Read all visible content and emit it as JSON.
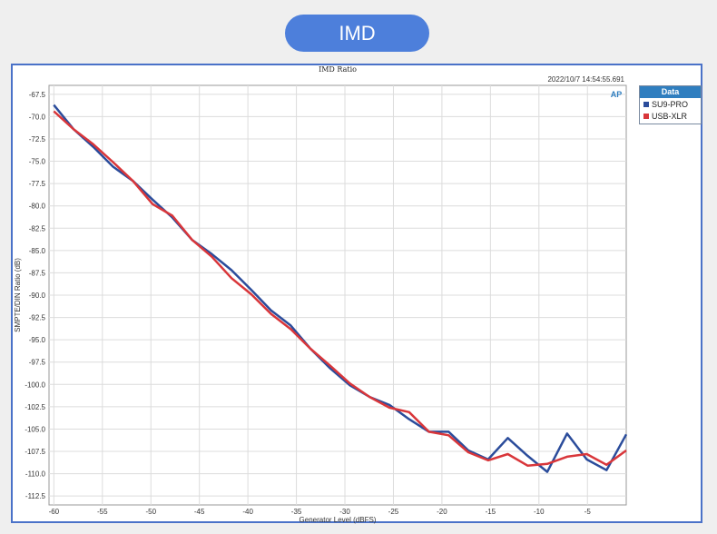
{
  "header": {
    "title": "IMD"
  },
  "chart_data": {
    "type": "line",
    "title": "IMD Ratio",
    "timestamp": "2022/10/7 14:54:55.691",
    "xlabel": "Generator Level (dBFS)",
    "ylabel": "SMPTE/DIN Ratio (dB)",
    "xlim": [
      -60.5,
      -1
    ],
    "ylim": [
      -113.5,
      -66.5
    ],
    "xticks": [
      -60,
      -55,
      -50,
      -45,
      -40,
      -35,
      -30,
      -25,
      -20,
      -15,
      -10,
      -5
    ],
    "yticks": [
      -67.5,
      -70.0,
      -72.5,
      -75.0,
      -77.5,
      -80.0,
      -82.5,
      -85.0,
      -87.5,
      -90.0,
      -92.5,
      -95.0,
      -97.5,
      -100.0,
      -102.5,
      -105.0,
      -107.5,
      -110.0,
      -112.5
    ],
    "grid": true,
    "legend_title": "Data",
    "legend_placement": "right",
    "x": [
      -60,
      -57.97,
      -55.93,
      -53.9,
      -51.86,
      -49.83,
      -47.79,
      -45.76,
      -43.72,
      -41.69,
      -39.66,
      -37.62,
      -35.59,
      -33.55,
      -31.52,
      -29.48,
      -27.45,
      -25.41,
      -23.38,
      -21.34,
      -19.31,
      -17.28,
      -15.24,
      -13.21,
      -11.17,
      -9.14,
      -7.1,
      -5.07,
      -3.03,
      -1
    ],
    "series": [
      {
        "name": "SU9-PRO",
        "color": "#2b4c9b",
        "values": [
          -68.7,
          -71.4,
          -73.4,
          -75.6,
          -77.2,
          -79.3,
          -81.3,
          -83.8,
          -85.4,
          -87.2,
          -89.4,
          -91.7,
          -93.4,
          -96.0,
          -98.2,
          -100.1,
          -101.4,
          -102.3,
          -103.9,
          -105.3,
          -105.3,
          -107.4,
          -108.4,
          -106.0,
          -108.0,
          -109.8,
          -105.5,
          -108.4,
          -109.6,
          -105.6
        ]
      },
      {
        "name": "USB-XLR",
        "color": "#d9363a",
        "values": [
          -69.4,
          -71.4,
          -73.1,
          -75.1,
          -77.2,
          -79.8,
          -81.1,
          -83.8,
          -85.7,
          -88.1,
          -89.9,
          -92.1,
          -93.8,
          -96.0,
          -97.9,
          -99.9,
          -101.4,
          -102.6,
          -103.1,
          -105.3,
          -105.7,
          -107.6,
          -108.5,
          -107.8,
          -109.1,
          -108.9,
          -108.1,
          -107.8,
          -109.0,
          -107.4
        ]
      }
    ]
  }
}
